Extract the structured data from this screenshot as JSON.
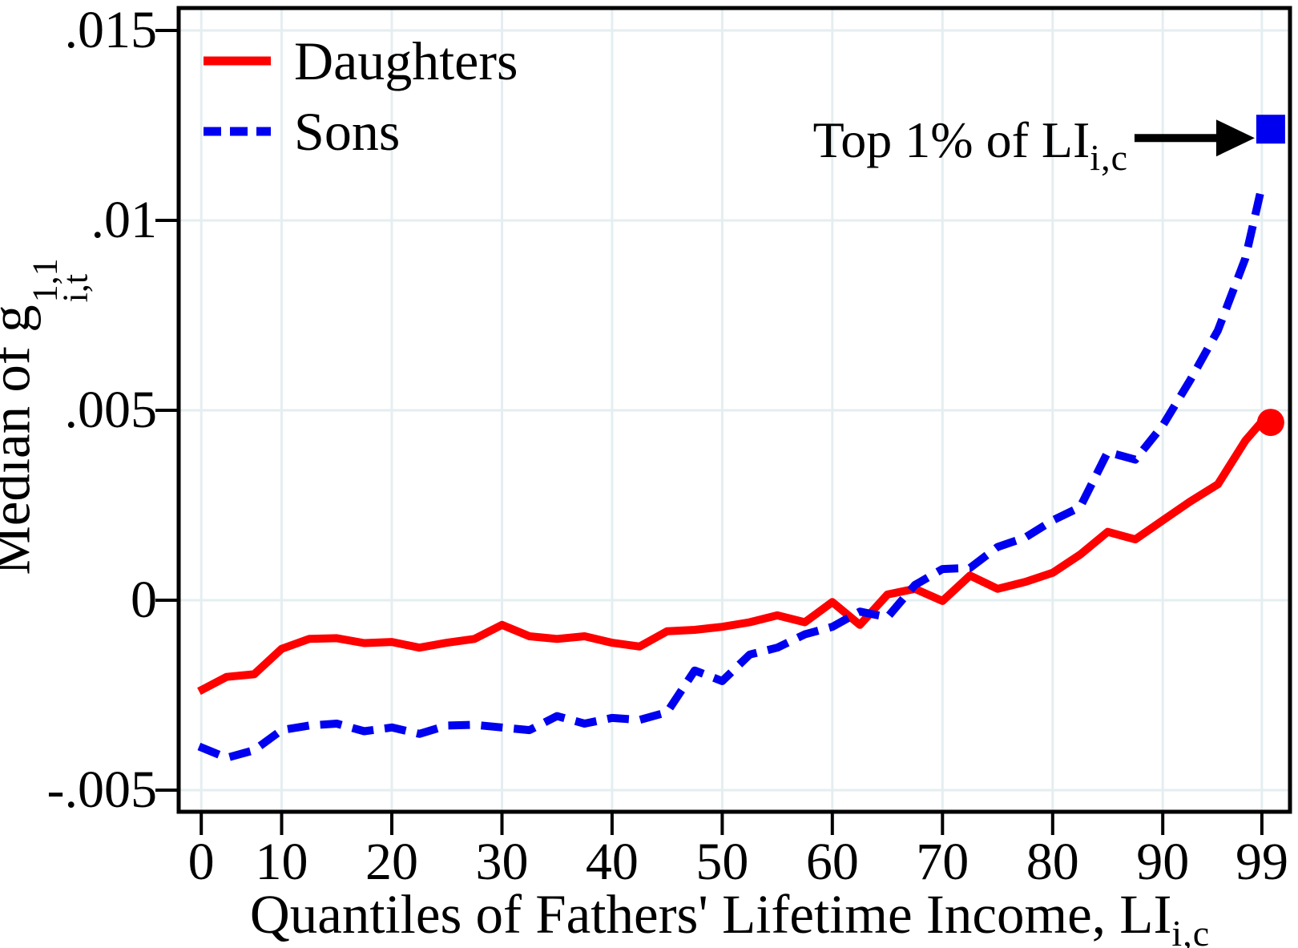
{
  "chart_data": {
    "type": "line",
    "title": "",
    "xlabel": "Quantiles of Fathers' Lifetime Income, LI",
    "xlabel_sub": "i,c",
    "ylabel": "Median of g",
    "ylabel_sup": "1,1",
    "ylabel_sub": "i,t",
    "grid": true,
    "grid_color": "#e4eef1",
    "frame_color": "#000000",
    "legend_position": "top-left",
    "xlim": [
      0.65,
      101.55
    ],
    "ylim": [
      -0.00557,
      0.01559
    ],
    "xticks": [
      {
        "label": "0",
        "q": 2.7
      },
      {
        "label": "10",
        "q": 10
      },
      {
        "label": "20",
        "q": 20
      },
      {
        "label": "30",
        "q": 30
      },
      {
        "label": "40",
        "q": 40
      },
      {
        "label": "50",
        "q": 50
      },
      {
        "label": "60",
        "q": 60
      },
      {
        "label": "70",
        "q": 70
      },
      {
        "label": "80",
        "q": 80
      },
      {
        "label": "90",
        "q": 90
      },
      {
        "label": "99",
        "q": 99
      }
    ],
    "yticks": [
      {
        "label": ".015",
        "v": 0.015
      },
      {
        "label": ".01",
        "v": 0.01
      },
      {
        "label": ".005",
        "v": 0.005
      },
      {
        "label": "0",
        "v": 0
      },
      {
        "label": "-.005",
        "v": -0.005
      }
    ],
    "x": [
      2.5,
      5,
      7.5,
      10,
      12.5,
      15,
      17.5,
      20,
      22.5,
      25,
      27.5,
      30,
      32.5,
      35,
      37.5,
      40,
      42.5,
      45,
      47.5,
      50,
      52.5,
      55,
      57.5,
      60,
      62.5,
      65,
      67.5,
      70,
      72.5,
      75,
      77.5,
      80,
      82.5,
      85,
      87.5,
      90,
      92.5,
      95,
      97.5,
      99
    ],
    "series": [
      {
        "name": "Daughters",
        "color": "#ff0000",
        "style": "solid",
        "values": [
          -0.0024,
          -0.00202,
          -0.00195,
          -0.00128,
          -0.00102,
          -0.001,
          -0.00113,
          -0.0011,
          -0.00125,
          -0.00112,
          -0.00102,
          -0.00065,
          -0.00095,
          -0.00102,
          -0.00095,
          -0.00112,
          -0.00122,
          -0.00082,
          -0.00078,
          -0.0007,
          -0.00058,
          -0.0004,
          -0.00058,
          -5e-05,
          -0.00065,
          0.00015,
          0.0003,
          -2e-05,
          0.00065,
          0.0003,
          0.00048,
          0.00072,
          0.0012,
          0.0018,
          0.0016,
          0.0021,
          0.0026,
          0.00305,
          0.0042,
          0.0047
        ],
        "end_marker": {
          "shape": "circle",
          "q": 99.8,
          "v": 0.00468
        }
      },
      {
        "name": "Sons",
        "color": "#0000f0",
        "style": "dashed",
        "values": [
          -0.00385,
          -0.00415,
          -0.00395,
          -0.00342,
          -0.0033,
          -0.00325,
          -0.00345,
          -0.00335,
          -0.00352,
          -0.0033,
          -0.00328,
          -0.00335,
          -0.00342,
          -0.00305,
          -0.00325,
          -0.0031,
          -0.00315,
          -0.00295,
          -0.00185,
          -0.00213,
          -0.00143,
          -0.00125,
          -0.0009,
          -0.0007,
          -0.0003,
          -0.00045,
          0.0004,
          0.00082,
          0.00085,
          0.0014,
          0.00165,
          0.0021,
          0.00245,
          0.0039,
          0.0037,
          0.0046,
          0.0058,
          0.0071,
          0.009,
          0.0109
        ],
        "end_marker": {
          "shape": "square",
          "q": 99.8,
          "v": 0.0124
        }
      }
    ],
    "annotation": {
      "text": "Top 1% of LI",
      "sub": "i,c"
    }
  }
}
